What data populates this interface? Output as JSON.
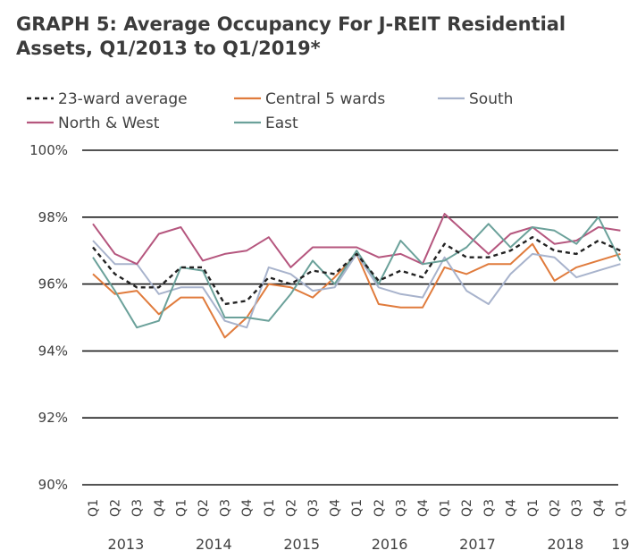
{
  "chart_data": {
    "type": "line",
    "title": "GRAPH 5: Average Occupancy For J-REIT Residential Assets, Q1/2013 to Q1/2019*",
    "xlabel": "",
    "ylabel": "",
    "ylim": [
      90,
      100
    ],
    "yticks": [
      90,
      92,
      94,
      96,
      98,
      100
    ],
    "ytick_labels": [
      "90%",
      "92%",
      "94%",
      "96%",
      "98%",
      "100%"
    ],
    "grid": "horizontal",
    "legend_position": "top",
    "categories": [
      "Q1",
      "Q2",
      "Q3",
      "Q4",
      "Q1",
      "Q2",
      "Q3",
      "Q4",
      "Q1",
      "Q2",
      "Q3",
      "Q4",
      "Q1",
      "Q2",
      "Q3",
      "Q4",
      "Q1",
      "Q2",
      "Q3",
      "Q4",
      "Q1",
      "Q2",
      "Q3",
      "Q4",
      "Q1"
    ],
    "years": [
      {
        "label": "2013",
        "start": 0,
        "end": 3
      },
      {
        "label": "2014",
        "start": 4,
        "end": 7
      },
      {
        "label": "2015",
        "start": 8,
        "end": 11
      },
      {
        "label": "2016",
        "start": 12,
        "end": 15
      },
      {
        "label": "2017",
        "start": 16,
        "end": 19
      },
      {
        "label": "2018",
        "start": 20,
        "end": 23
      },
      {
        "label": "19",
        "start": 24,
        "end": 24
      }
    ],
    "series": [
      {
        "name": "23-ward average",
        "color": "#222222",
        "dashed": true,
        "values": [
          97.1,
          96.3,
          95.9,
          95.9,
          96.5,
          96.5,
          95.4,
          95.5,
          96.2,
          96.0,
          96.4,
          96.3,
          96.9,
          96.1,
          96.4,
          96.2,
          97.2,
          96.8,
          96.8,
          97.0,
          97.4,
          97.0,
          96.9,
          97.3,
          97.0
        ]
      },
      {
        "name": "Central 5 wards",
        "color": "#e07b3c",
        "values": [
          96.3,
          95.7,
          95.8,
          95.1,
          95.6,
          95.6,
          94.4,
          95.0,
          96.0,
          95.9,
          95.6,
          96.2,
          96.9,
          95.4,
          95.3,
          95.3,
          96.5,
          96.3,
          96.6,
          96.6,
          97.2,
          96.1,
          96.5,
          96.7,
          96.9
        ]
      },
      {
        "name": "South",
        "color": "#a8b3cc",
        "values": [
          97.3,
          96.6,
          96.6,
          95.7,
          95.9,
          95.9,
          94.9,
          94.7,
          96.5,
          96.3,
          95.8,
          95.9,
          96.9,
          95.9,
          95.7,
          95.6,
          96.8,
          95.8,
          95.4,
          96.3,
          96.9,
          96.8,
          96.2,
          96.4,
          96.6
        ]
      },
      {
        "name": "North & West",
        "color": "#b5567e",
        "values": [
          97.8,
          96.9,
          96.6,
          97.5,
          97.7,
          96.7,
          96.9,
          97.0,
          97.4,
          96.5,
          97.1,
          97.1,
          97.1,
          96.8,
          96.9,
          96.6,
          98.1,
          97.5,
          96.9,
          97.5,
          97.7,
          97.2,
          97.3,
          97.7,
          97.6
        ]
      },
      {
        "name": "East",
        "color": "#6ba19a",
        "values": [
          96.8,
          95.8,
          94.7,
          94.9,
          96.5,
          96.4,
          95.0,
          95.0,
          94.9,
          95.7,
          96.7,
          96.0,
          97.0,
          96.0,
          97.3,
          96.6,
          96.7,
          97.1,
          97.8,
          97.1,
          97.7,
          97.6,
          97.2,
          98.0,
          96.7
        ]
      }
    ]
  }
}
